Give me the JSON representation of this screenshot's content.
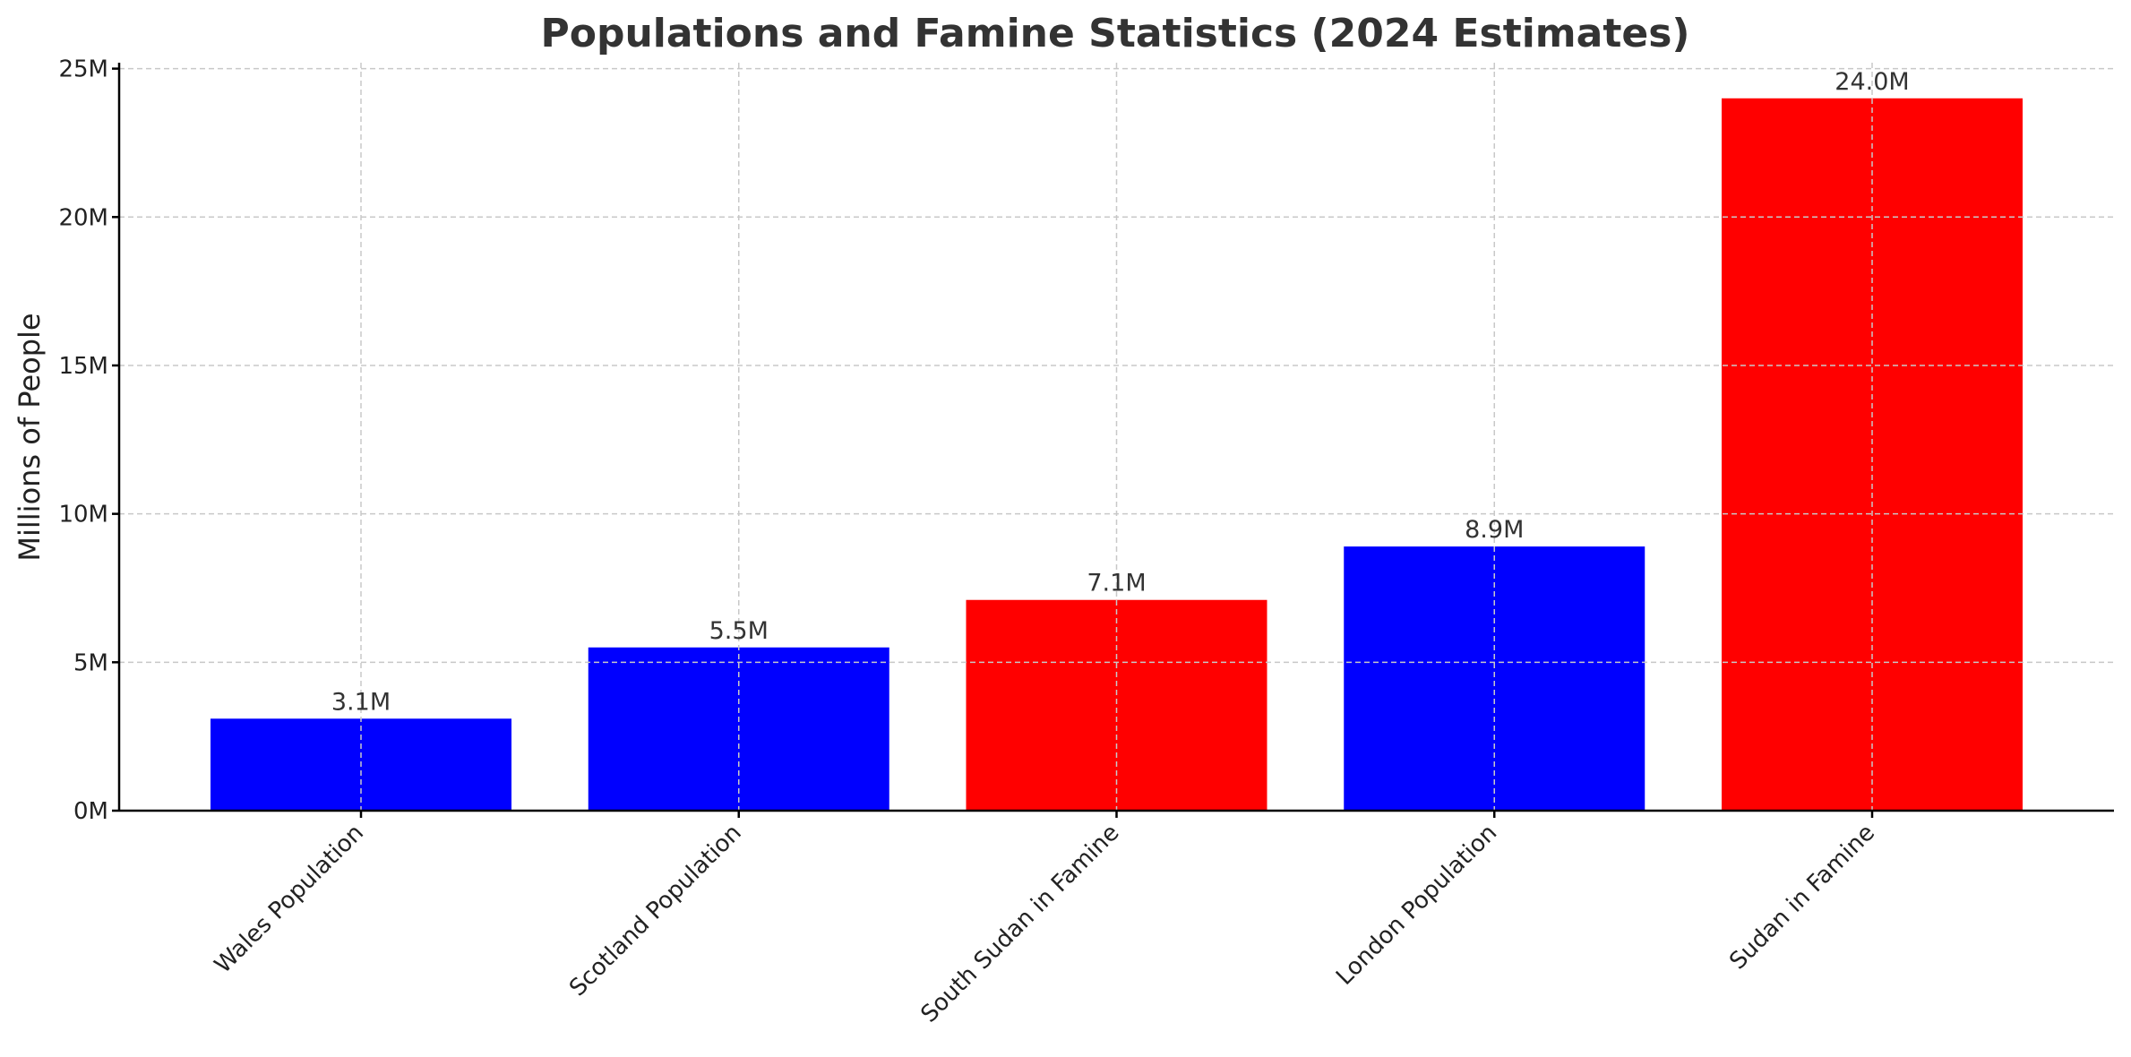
{
  "chart_data": {
    "type": "bar",
    "title": "Populations and Famine Statistics (2024 Estimates)",
    "xlabel": "",
    "ylabel": "Millions of People",
    "categories": [
      "Wales Population",
      "Scotland Population",
      "South Sudan in Famine",
      "London Population",
      "Sudan in Famine"
    ],
    "values": [
      3.1,
      5.5,
      7.1,
      8.9,
      24.0
    ],
    "value_labels": [
      "3.1M",
      "5.5M",
      "7.1M",
      "8.9M",
      "24.0M"
    ],
    "bar_colors": [
      "#0000ff",
      "#0000ff",
      "#ff0000",
      "#0000ff",
      "#ff0000"
    ],
    "ylim": [
      0,
      25.2
    ],
    "yticks": [
      0,
      5,
      10,
      15,
      20,
      25
    ],
    "ytick_labels": [
      "0M",
      "5M",
      "10M",
      "15M",
      "20M",
      "25M"
    ],
    "grid": true,
    "legend": "none"
  }
}
